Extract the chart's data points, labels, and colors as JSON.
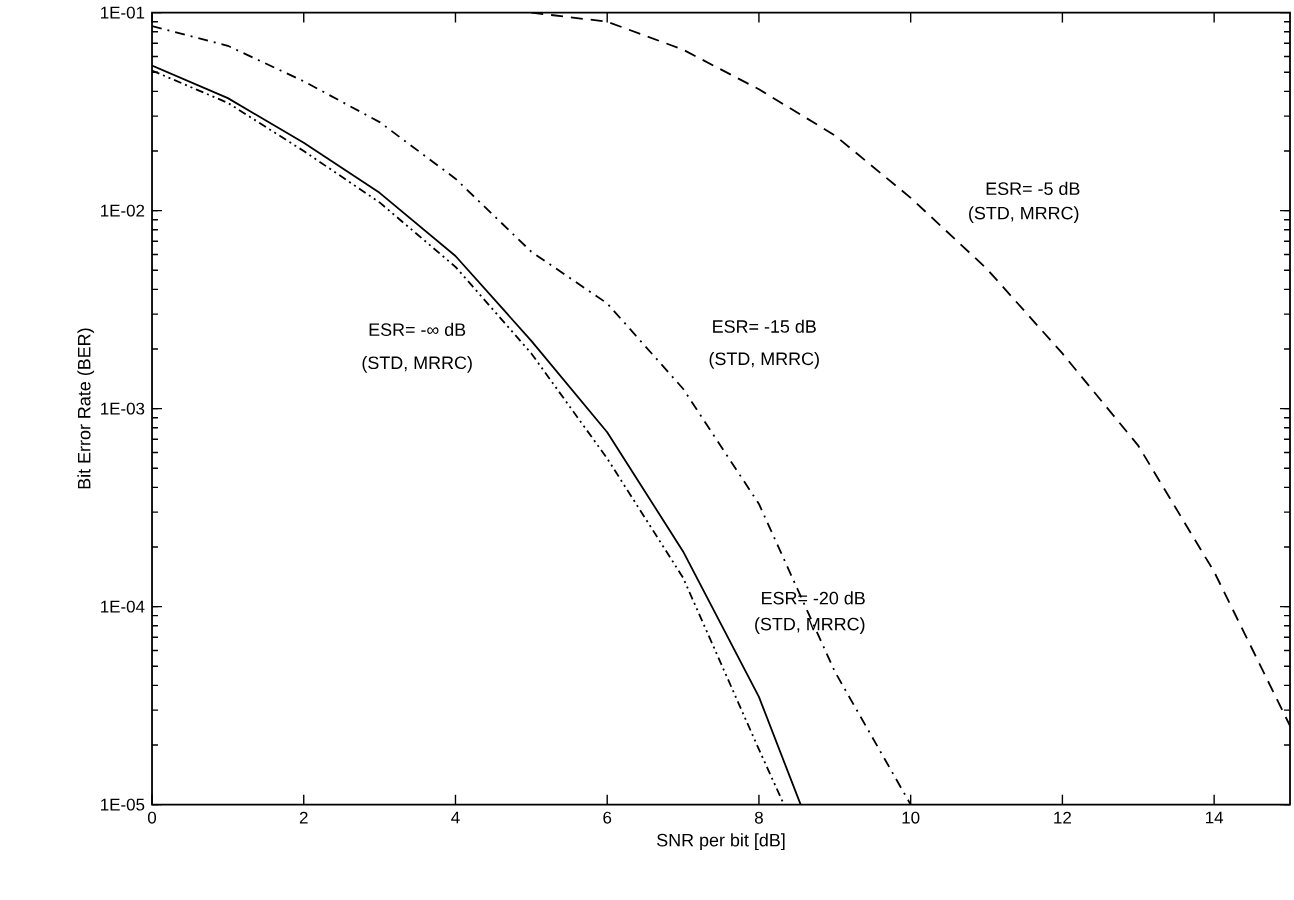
{
  "chart_data": {
    "type": "line",
    "xlabel": "SNR per bit [dB]",
    "ylabel": "Bit Error Rate (BER)",
    "log": "y",
    "grid": false,
    "marker": "none",
    "xlim": [
      0,
      15
    ],
    "xticks": [
      0,
      2,
      4,
      6,
      8,
      10,
      12,
      14
    ],
    "ylim": [
      1e-05,
      0.1
    ],
    "yticks": [
      {
        "value": 1e-05,
        "label": "1E-05"
      },
      {
        "value": 0.0001,
        "label": "1E-04"
      },
      {
        "value": 0.001,
        "label": "1E-03"
      },
      {
        "value": 0.01,
        "label": "1E-02"
      },
      {
        "value": 0.1,
        "label": "1E-01"
      }
    ],
    "series": [
      {
        "color": "#000000",
        "line_style": "solid",
        "x": [
          0,
          1,
          2,
          3,
          4,
          5,
          6,
          7,
          8,
          8.55
        ],
        "values": [
          0.054,
          0.037,
          0.022,
          0.0123,
          0.0059,
          0.0022,
          0.00076,
          0.00019,
          3.5e-05,
          1e-05
        ]
      },
      {
        "color": "#000000",
        "line_style": "dashdotdot",
        "x": [
          0,
          1,
          2,
          3,
          4,
          5,
          6,
          7,
          8,
          8.33
        ],
        "values": [
          0.051,
          0.035,
          0.02,
          0.011,
          0.0052,
          0.0019,
          0.00056,
          0.00014,
          1.9e-05,
          1e-05
        ]
      },
      {
        "color": "#000000",
        "line_style": "dashdot",
        "x": [
          0,
          1,
          2,
          3,
          4,
          5,
          6,
          7,
          8,
          9,
          10
        ],
        "values": [
          0.0855,
          0.068,
          0.045,
          0.028,
          0.0145,
          0.0062,
          0.0034,
          0.00126,
          0.00033,
          4.7e-05,
          1e-05
        ]
      },
      {
        "color": "#000000",
        "line_style": "dashed",
        "x": [
          5,
          6,
          7,
          8,
          9,
          10,
          11,
          12,
          13,
          14,
          15
        ],
        "values": [
          0.1,
          0.09,
          0.065,
          0.041,
          0.024,
          0.0116,
          0.0051,
          0.0019,
          0.00065,
          0.00015,
          2.5e-05
        ]
      }
    ],
    "annotations": [
      "ESR= -∞ dB",
      "(STD, MRRC)",
      "ESR= -15 dB",
      "(STD, MRRC)",
      "ESR=  -5 dB",
      "(STD, MRRC)",
      "ESR= -20 dB",
      "(STD, MRRC)"
    ]
  }
}
